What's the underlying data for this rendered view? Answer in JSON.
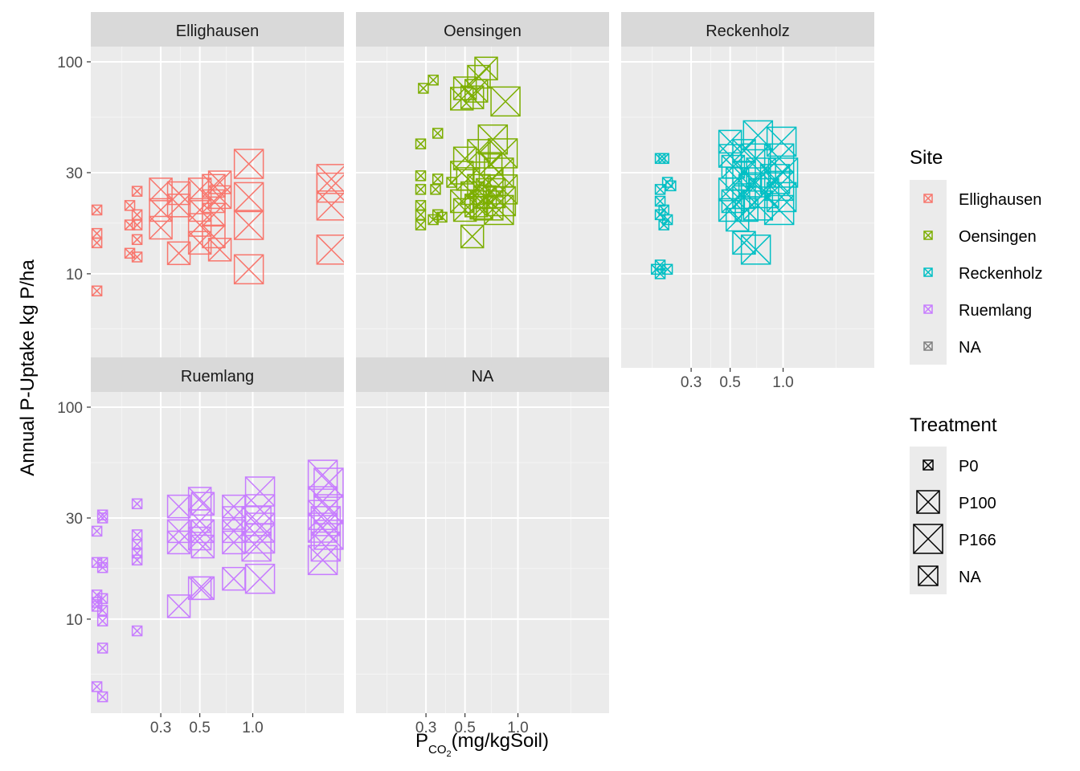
{
  "chart_data": {
    "type": "scatter",
    "facet_by": "Site",
    "x_scale": "log10",
    "y_scale": "log10",
    "xlabel": {
      "base": "P",
      "subscript": "CO",
      "sub_subscript": "2",
      "rest": "(mg/kgSoil)"
    },
    "ylabel": "Annual P-Uptake kg P/ha",
    "x_ticks": [
      {
        "value": 0.3,
        "label": "0.3"
      },
      {
        "value": 0.5,
        "label": "0.5"
      },
      {
        "value": 1.0,
        "label": "1.0"
      }
    ],
    "y_ticks": [
      {
        "value": 10,
        "label": "10"
      },
      {
        "value": 30,
        "label": "30"
      },
      {
        "value": 100,
        "label": "100"
      }
    ],
    "xlim": [
      0.12,
      3.3
    ],
    "ylim": [
      3.6,
      118
    ],
    "grid": true,
    "colors": {
      "Ellighausen": "#F8766D",
      "Oensingen": "#7CAE00",
      "Reckenholz": "#00BFC4",
      "Ruemlang": "#C77CFF",
      "NA": "#7F7F7F"
    },
    "legend": {
      "placement": "right",
      "site_title": "Site",
      "sites": [
        "Ellighausen",
        "Oensingen",
        "Reckenholz",
        "Ruemlang",
        "NA"
      ],
      "treatment_title": "Treatment",
      "treatments": [
        "P0",
        "P100",
        "P166",
        "NA"
      ]
    },
    "panels": [
      {
        "site": "Ellighausen",
        "points": [
          [
            0.13,
            20,
            "P0"
          ],
          [
            0.13,
            15.5,
            "P0"
          ],
          [
            0.13,
            14,
            "P0"
          ],
          [
            0.13,
            8.3,
            "P0"
          ],
          [
            0.2,
            21,
            "P0"
          ],
          [
            0.2,
            17,
            "P0"
          ],
          [
            0.2,
            12.5,
            "P0"
          ],
          [
            0.22,
            24.5,
            "P0"
          ],
          [
            0.22,
            19,
            "P0"
          ],
          [
            0.22,
            17,
            "P0"
          ],
          [
            0.22,
            14.5,
            "P0"
          ],
          [
            0.22,
            12,
            "P0"
          ],
          [
            0.3,
            25,
            "P100"
          ],
          [
            0.3,
            20,
            "P100"
          ],
          [
            0.3,
            16.5,
            "P100"
          ],
          [
            0.38,
            24,
            "P100"
          ],
          [
            0.38,
            21,
            "P100"
          ],
          [
            0.38,
            12.5,
            "P100"
          ],
          [
            0.5,
            25,
            "P100"
          ],
          [
            0.5,
            20,
            "P100"
          ],
          [
            0.5,
            17,
            "P100"
          ],
          [
            0.5,
            14,
            "P100"
          ],
          [
            0.6,
            26,
            "P100"
          ],
          [
            0.6,
            22,
            "P100"
          ],
          [
            0.6,
            19,
            "P100"
          ],
          [
            0.6,
            15,
            "P100"
          ],
          [
            0.65,
            27,
            "P100"
          ],
          [
            0.65,
            23,
            "P100"
          ],
          [
            0.65,
            13,
            "P100"
          ],
          [
            0.95,
            33,
            "P166"
          ],
          [
            0.95,
            23,
            "P166"
          ],
          [
            0.95,
            17,
            "P166"
          ],
          [
            0.95,
            10.5,
            "P166"
          ],
          [
            2.8,
            28,
            "P166"
          ],
          [
            2.8,
            25.5,
            "P166"
          ],
          [
            2.8,
            21,
            "P166"
          ],
          [
            2.8,
            13,
            "P166"
          ]
        ]
      },
      {
        "site": "Oensingen",
        "points": [
          [
            0.29,
            75,
            "P0"
          ],
          [
            0.33,
            82,
            "P0"
          ],
          [
            0.28,
            41,
            "P0"
          ],
          [
            0.35,
            46,
            "P0"
          ],
          [
            0.28,
            29,
            "P0"
          ],
          [
            0.28,
            25,
            "P0"
          ],
          [
            0.28,
            21,
            "P0"
          ],
          [
            0.28,
            19,
            "P0"
          ],
          [
            0.35,
            28,
            "P0"
          ],
          [
            0.34,
            25,
            "P0"
          ],
          [
            0.35,
            19,
            "P0"
          ],
          [
            0.33,
            18,
            "P0"
          ],
          [
            0.37,
            18.5,
            "P0"
          ],
          [
            0.42,
            27,
            "P0"
          ],
          [
            0.28,
            17,
            "P0"
          ],
          [
            0.48,
            67,
            "P100"
          ],
          [
            0.55,
            68,
            "P100"
          ],
          [
            0.6,
            85,
            "P100"
          ],
          [
            0.5,
            75,
            "P100"
          ],
          [
            0.58,
            73,
            "P100"
          ],
          [
            0.66,
            93,
            "P100"
          ],
          [
            0.5,
            35,
            "P100"
          ],
          [
            0.6,
            38,
            "P100"
          ],
          [
            0.48,
            30,
            "P100"
          ],
          [
            0.52,
            28,
            "P100"
          ],
          [
            0.55,
            24,
            "P100"
          ],
          [
            0.6,
            26,
            "P100"
          ],
          [
            0.58,
            21,
            "P100"
          ],
          [
            0.65,
            23,
            "P100"
          ],
          [
            0.7,
            33,
            "P100"
          ],
          [
            0.5,
            20,
            "P100"
          ],
          [
            0.48,
            22,
            "P100"
          ],
          [
            0.62,
            20.5,
            "P100"
          ],
          [
            0.55,
            15,
            "P100"
          ],
          [
            0.85,
            65,
            "P166"
          ],
          [
            0.72,
            43,
            "P166"
          ],
          [
            0.82,
            37,
            "P166"
          ],
          [
            0.78,
            30,
            "P166"
          ],
          [
            0.68,
            27,
            "P166"
          ],
          [
            0.82,
            25,
            "P166"
          ],
          [
            0.7,
            24,
            "P166"
          ],
          [
            0.8,
            22,
            "P166"
          ],
          [
            0.68,
            21,
            "P166"
          ],
          [
            0.78,
            20,
            "P166"
          ]
        ]
      },
      {
        "site": "Reckenholz",
        "points": [
          [
            0.2,
            35,
            "P0"
          ],
          [
            0.21,
            35,
            "P0"
          ],
          [
            0.22,
            27,
            "P0"
          ],
          [
            0.23,
            26,
            "P0"
          ],
          [
            0.2,
            25,
            "P0"
          ],
          [
            0.2,
            22,
            "P0"
          ],
          [
            0.21,
            20,
            "P0"
          ],
          [
            0.2,
            19,
            "P0"
          ],
          [
            0.22,
            18,
            "P0"
          ],
          [
            0.21,
            17,
            "P0"
          ],
          [
            0.2,
            11,
            "P0"
          ],
          [
            0.19,
            10.5,
            "P0"
          ],
          [
            0.2,
            10,
            "P0"
          ],
          [
            0.22,
            10.5,
            "P0"
          ],
          [
            0.5,
            42,
            "P100"
          ],
          [
            0.5,
            36,
            "P100"
          ],
          [
            0.52,
            32,
            "P100"
          ],
          [
            0.55,
            28,
            "P100"
          ],
          [
            0.5,
            25,
            "P100"
          ],
          [
            0.52,
            22,
            "P100"
          ],
          [
            0.5,
            20,
            "P100"
          ],
          [
            0.55,
            18,
            "P100"
          ],
          [
            0.6,
            14,
            "P100"
          ],
          [
            0.6,
            30,
            "P100"
          ],
          [
            0.65,
            26,
            "P100"
          ],
          [
            0.6,
            23,
            "P100"
          ],
          [
            0.62,
            20,
            "P100"
          ],
          [
            0.6,
            38,
            "P100"
          ],
          [
            0.72,
            45,
            "P166"
          ],
          [
            0.7,
            35,
            "P166"
          ],
          [
            0.75,
            30,
            "P166"
          ],
          [
            0.7,
            27,
            "P166"
          ],
          [
            0.78,
            24,
            "P166"
          ],
          [
            0.72,
            21,
            "P166"
          ],
          [
            0.7,
            13,
            "P166"
          ],
          [
            0.98,
            42,
            "P166"
          ],
          [
            0.95,
            35,
            "P166"
          ],
          [
            1.0,
            30,
            "P166"
          ],
          [
            0.95,
            26,
            "P166"
          ],
          [
            0.98,
            23,
            "P166"
          ],
          [
            0.95,
            20,
            "P166"
          ],
          [
            0.9,
            28,
            "P166"
          ]
        ]
      },
      {
        "site": "Ruemlang",
        "points": [
          [
            0.13,
            26,
            "P0"
          ],
          [
            0.14,
            30,
            "P0"
          ],
          [
            0.14,
            31,
            "P0"
          ],
          [
            0.13,
            18.5,
            "P0"
          ],
          [
            0.14,
            18.5,
            "P0"
          ],
          [
            0.14,
            17.5,
            "P0"
          ],
          [
            0.13,
            13,
            "P0"
          ],
          [
            0.13,
            12,
            "P0"
          ],
          [
            0.14,
            12.5,
            "P0"
          ],
          [
            0.14,
            11,
            "P0"
          ],
          [
            0.13,
            11.5,
            "P0"
          ],
          [
            0.14,
            9.8,
            "P0"
          ],
          [
            0.14,
            7.3,
            "P0"
          ],
          [
            0.13,
            4.8,
            "P0"
          ],
          [
            0.14,
            4.3,
            "P0"
          ],
          [
            0.22,
            35,
            "P0"
          ],
          [
            0.22,
            25,
            "P0"
          ],
          [
            0.22,
            22.5,
            "P0"
          ],
          [
            0.22,
            20.5,
            "P0"
          ],
          [
            0.22,
            19,
            "P0"
          ],
          [
            0.22,
            8.8,
            "P0"
          ],
          [
            0.38,
            34,
            "P100"
          ],
          [
            0.38,
            26,
            "P100"
          ],
          [
            0.38,
            23,
            "P100"
          ],
          [
            0.38,
            11.5,
            "P100"
          ],
          [
            0.5,
            37,
            "P100"
          ],
          [
            0.52,
            35,
            "P100"
          ],
          [
            0.5,
            29,
            "P100"
          ],
          [
            0.52,
            26,
            "P100"
          ],
          [
            0.5,
            24,
            "P100"
          ],
          [
            0.52,
            22,
            "P100"
          ],
          [
            0.5,
            14,
            "P100"
          ],
          [
            0.52,
            14,
            "P100"
          ],
          [
            0.78,
            34,
            "P100"
          ],
          [
            0.78,
            30,
            "P100"
          ],
          [
            0.78,
            26,
            "P100"
          ],
          [
            0.78,
            23,
            "P100"
          ],
          [
            0.78,
            15.5,
            "P100"
          ],
          [
            1.1,
            40,
            "P166"
          ],
          [
            1.1,
            33,
            "P166"
          ],
          [
            1.05,
            29,
            "P166"
          ],
          [
            1.1,
            27,
            "P166"
          ],
          [
            1.1,
            24,
            "P166"
          ],
          [
            1.05,
            22,
            "P166"
          ],
          [
            1.1,
            15.5,
            "P166"
          ],
          [
            2.5,
            48,
            "P166"
          ],
          [
            2.7,
            44,
            "P166"
          ],
          [
            2.5,
            36,
            "P166"
          ],
          [
            2.7,
            33,
            "P166"
          ],
          [
            2.5,
            31,
            "P166"
          ],
          [
            2.6,
            29,
            "P166"
          ],
          [
            2.5,
            27,
            "P166"
          ],
          [
            2.7,
            25,
            "P166"
          ],
          [
            2.6,
            22,
            "P166"
          ],
          [
            2.5,
            19,
            "P166"
          ]
        ]
      },
      {
        "site": "NA",
        "points": []
      }
    ]
  }
}
